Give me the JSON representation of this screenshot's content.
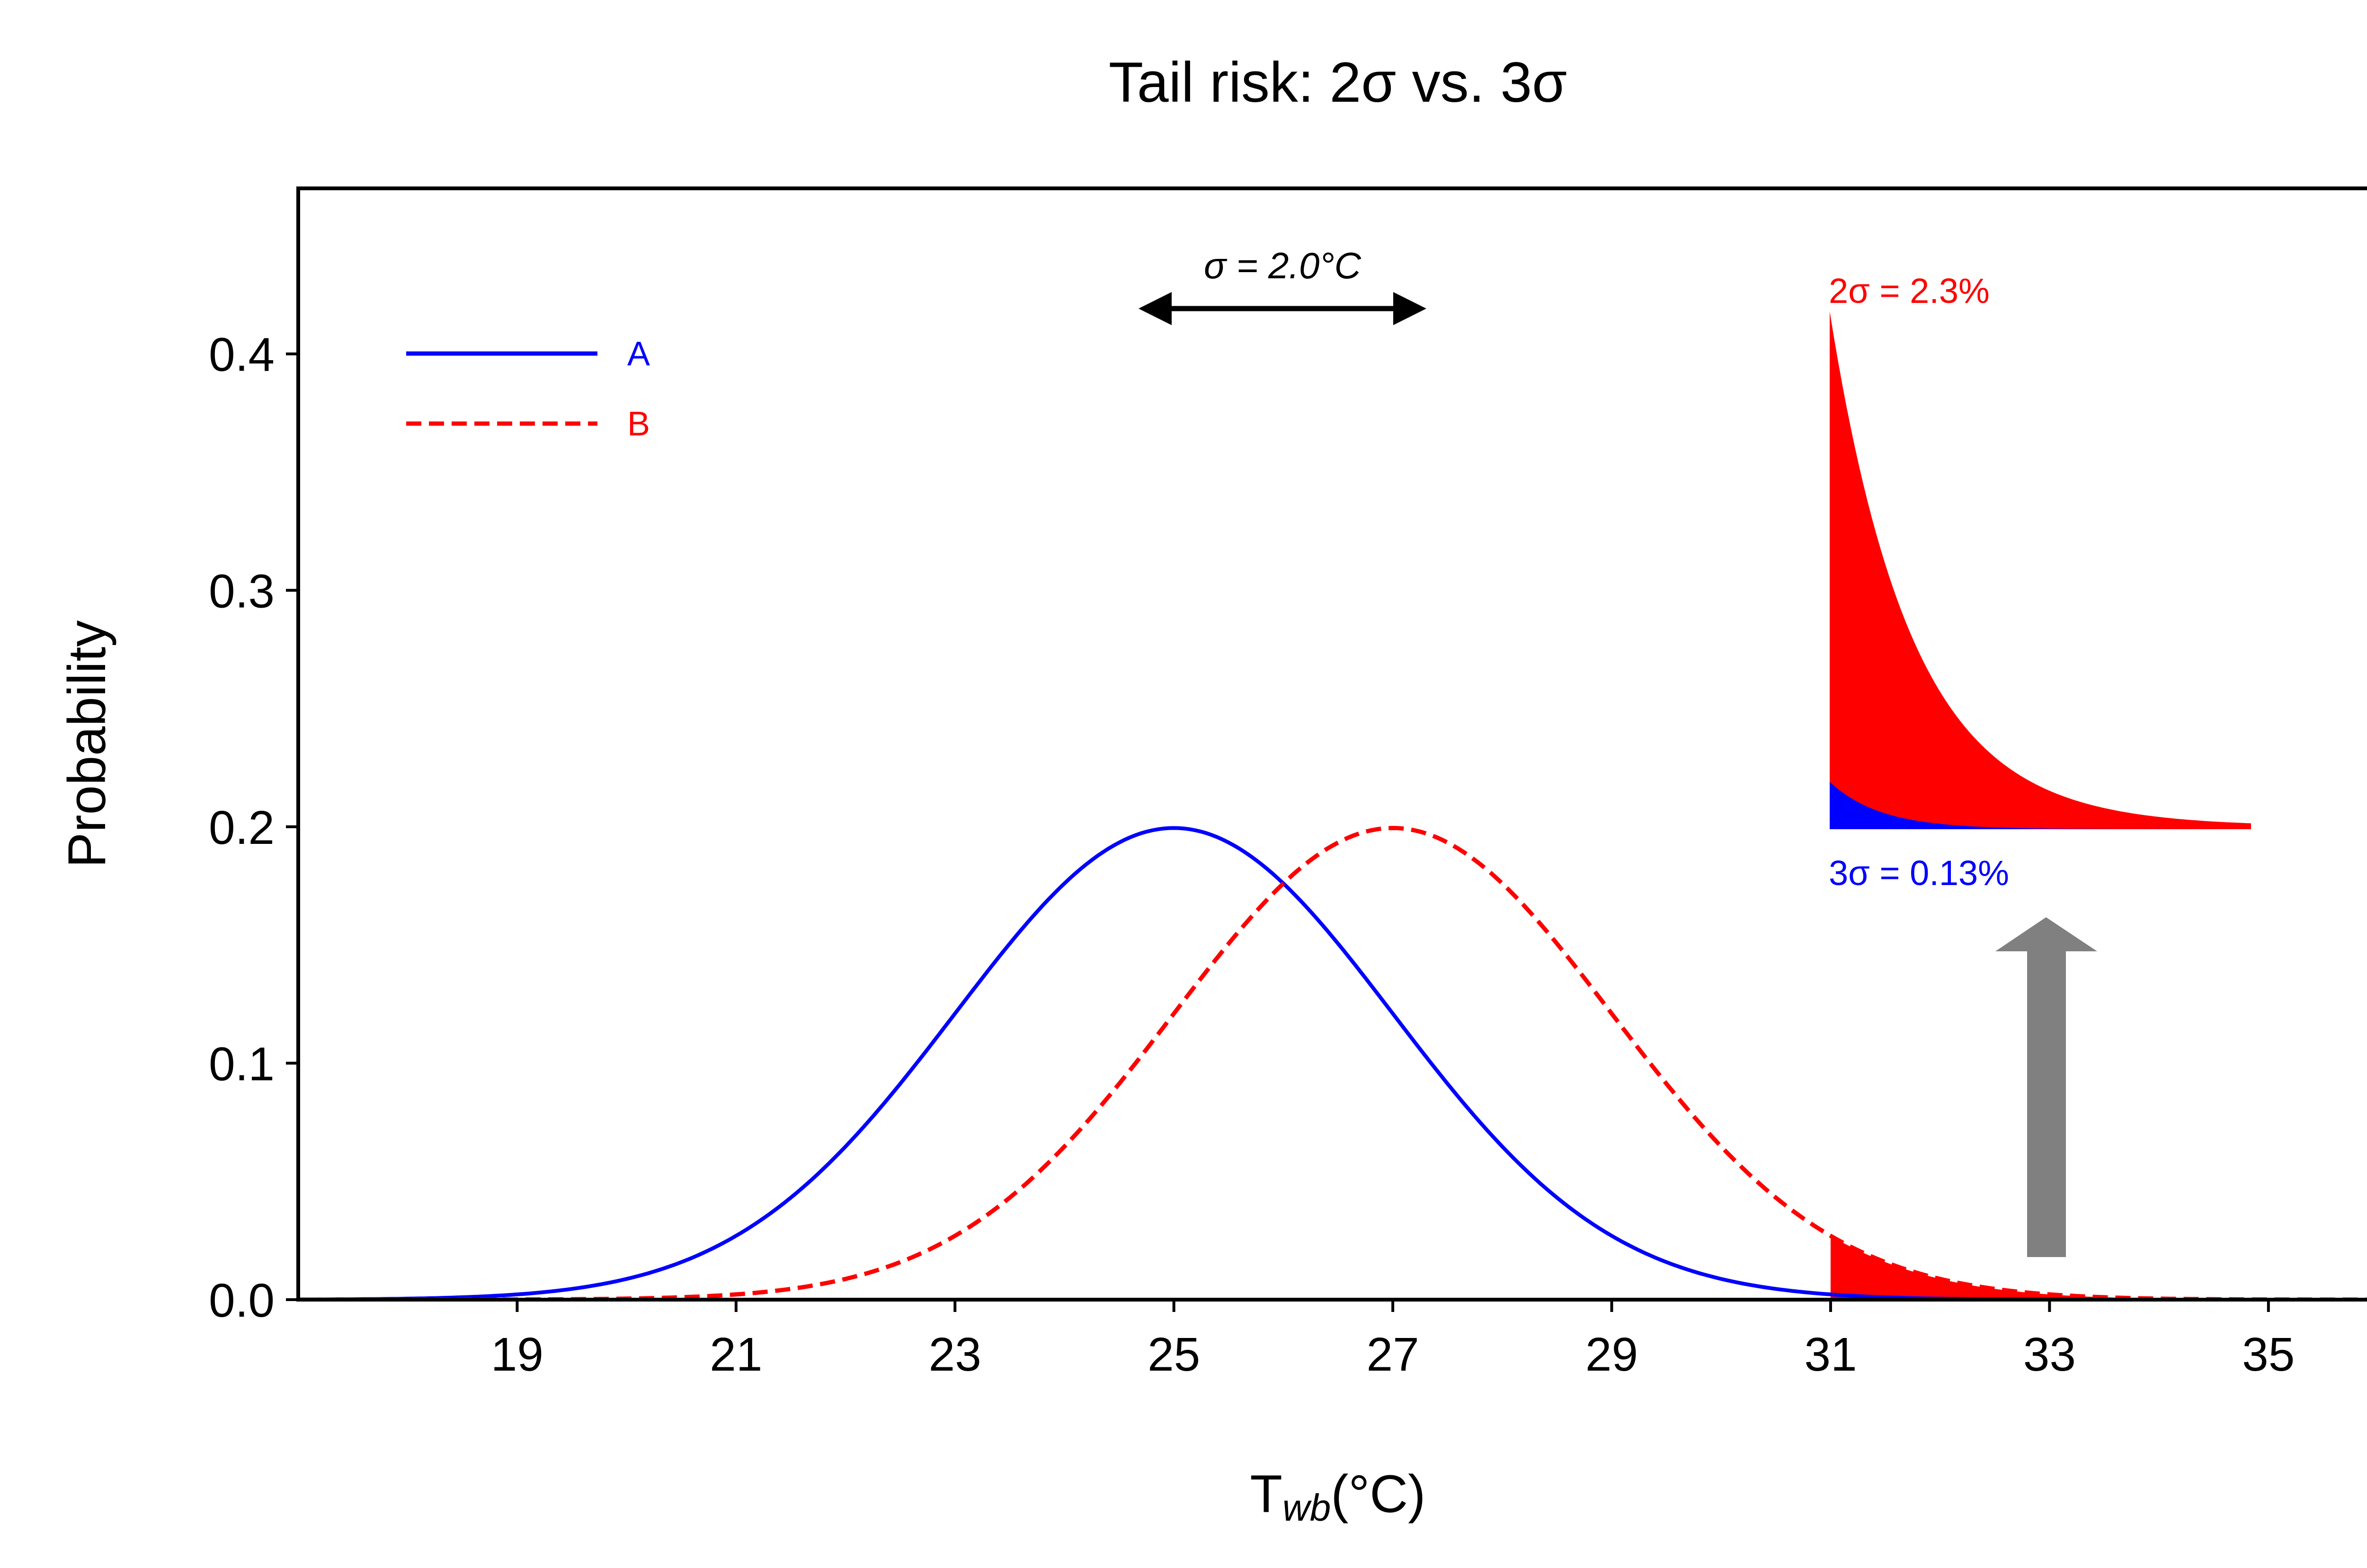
{
  "chart_data": {
    "type": "line",
    "title": "Tail risk: 2σ vs. 3σ",
    "xlabel": "T",
    "xlabel_sub": "wb",
    "xlabel_unit": "(°C)",
    "ylabel": "Probability",
    "xlim": [
      17,
      36
    ],
    "ylim": [
      0,
      0.47
    ],
    "x_ticks": [
      19,
      21,
      23,
      25,
      27,
      29,
      31,
      33,
      35
    ],
    "y_ticks": [
      0.0,
      0.1,
      0.2,
      0.3,
      0.4
    ],
    "y_tick_labels": [
      "0.0",
      "0.1",
      "0.2",
      "0.3",
      "0.4"
    ],
    "grid": false,
    "legend_position": "top-left",
    "series": [
      {
        "name": "A",
        "distribution": "normal",
        "mean": 25,
        "sd": 2.0,
        "color": "#0000ff",
        "style": "solid"
      },
      {
        "name": "B",
        "distribution": "normal",
        "mean": 27,
        "sd": 2.0,
        "color": "#ff0000",
        "style": "dashed"
      }
    ],
    "tail_fill": {
      "x_from": 31,
      "series": "B",
      "color": "#ff0000"
    },
    "sigma_annotation": {
      "text": "σ = 2.0°C",
      "x_from": 24.6,
      "x_to": 27.4,
      "y": 0.42
    },
    "inset": {
      "red_label": "2σ = 2.3%",
      "blue_label": "3σ = 0.13%",
      "red_color": "#ff0000",
      "blue_color": "#0000ff"
    },
    "up_arrow": {
      "x": 33,
      "color": "#808080"
    }
  }
}
